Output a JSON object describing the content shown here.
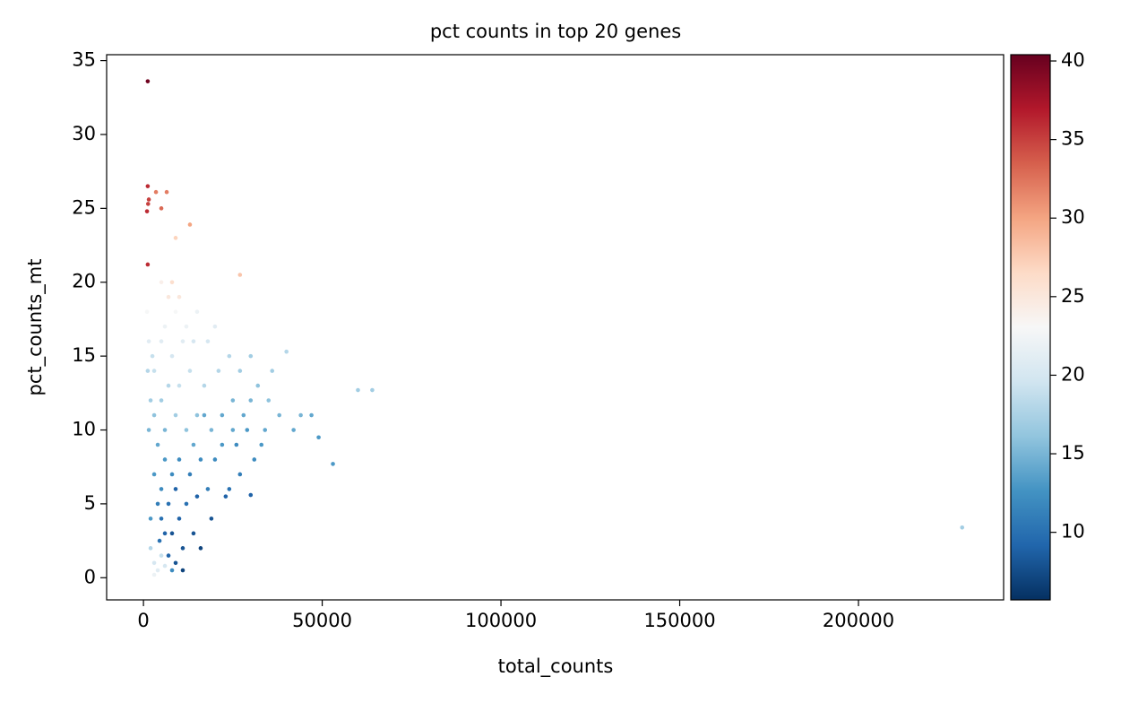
{
  "chart_data": {
    "type": "scatter",
    "title": "pct counts in top 20 genes",
    "xlabel": "total_counts",
    "ylabel": "pct_counts_mt",
    "xlim": [
      -10300,
      240600
    ],
    "xticks": [
      0,
      50000,
      100000,
      150000,
      200000
    ],
    "ylim": [
      -1.5,
      35.4
    ],
    "yticks": [
      0,
      5,
      10,
      15,
      20,
      25,
      30,
      35
    ],
    "clim": [
      5.7,
      40.4
    ],
    "cticks": [
      10,
      15,
      20,
      25,
      30,
      35,
      40
    ],
    "colormap": [
      "#053061",
      "#2166ac",
      "#4393c3",
      "#92c5de",
      "#d1e5f0",
      "#f7f7f7",
      "#fddbc7",
      "#f4a582",
      "#d6604d",
      "#b2182b",
      "#67001f"
    ],
    "x": [
      1200,
      1200,
      1500,
      1300,
      1000,
      3500,
      6500,
      5000,
      13000,
      1200,
      9000,
      27000,
      60000,
      64000,
      229000,
      53000,
      47000,
      49000,
      40000,
      30000,
      3000,
      4000,
      5000,
      2000,
      6000,
      3000,
      8000,
      7000,
      9000,
      6000,
      5000,
      4000,
      7000,
      8000,
      10000,
      12000,
      15000,
      18000,
      14000,
      11000,
      5000,
      3000,
      6000,
      8000,
      10000,
      13000,
      16000,
      20000,
      22000,
      25000,
      28000,
      30000,
      32000,
      35000,
      38000,
      42000,
      31000,
      27000,
      24000,
      19000,
      15000,
      12000,
      9000,
      6000,
      4000,
      3000,
      5000,
      7000,
      10000,
      13000,
      17000,
      21000,
      24000,
      27000,
      25000,
      8000,
      11000,
      14000,
      18000,
      5000,
      3000,
      6000,
      9000,
      12000,
      7000,
      10000,
      5000,
      8000,
      15000,
      20000,
      2500,
      2000,
      1500,
      1200,
      1500,
      1000,
      22000,
      33000,
      36000,
      44000,
      16000,
      9000,
      11000,
      4500,
      2000,
      19000,
      23000,
      30000,
      14000,
      17000,
      26000,
      29000,
      34000
    ],
    "y": [
      33.6,
      26.5,
      25.6,
      25.3,
      24.8,
      26.1,
      26.1,
      25,
      23.9,
      21.2,
      23,
      20.5,
      12.7,
      12.7,
      3.4,
      7.7,
      11,
      9.5,
      15.3,
      15,
      1.0,
      0.5,
      1.5,
      2.0,
      0.8,
      0.2,
      0.5,
      1.5,
      1.0,
      3,
      4,
      5,
      5,
      3,
      4,
      5,
      5.5,
      6,
      3,
      2,
      6,
      7,
      8,
      7,
      8,
      7,
      8,
      8,
      9,
      10,
      11,
      12,
      13,
      12,
      11,
      10,
      8,
      7,
      6,
      10,
      11,
      10,
      11,
      10,
      9,
      11,
      12,
      13,
      13,
      14,
      13,
      14,
      15,
      14,
      12,
      15,
      16,
      16,
      16,
      16,
      14,
      17,
      18,
      17,
      19,
      19,
      20,
      20,
      18,
      17,
      15,
      12,
      10,
      14,
      16,
      18,
      11,
      9,
      14,
      11,
      2,
      6,
      0.5,
      2.5,
      4,
      4,
      5.5,
      5.6,
      9,
      11,
      9,
      10,
      10
    ],
    "color_values": [
      40,
      36,
      35,
      35,
      36,
      32,
      32,
      33,
      30,
      36,
      27,
      28,
      17,
      17,
      17,
      13,
      14,
      13,
      18,
      17,
      20,
      21,
      19,
      18,
      20,
      22,
      12,
      9,
      8,
      9,
      10,
      11,
      10,
      8,
      9,
      10,
      9,
      11,
      8,
      8,
      12,
      13,
      13,
      12,
      12,
      11,
      12,
      12,
      13,
      14,
      14,
      15,
      16,
      16,
      15,
      14,
      12,
      11,
      10,
      15,
      16,
      16,
      17,
      15,
      14,
      16,
      17,
      18,
      19,
      19,
      18,
      18,
      18,
      17,
      15,
      20,
      21,
      20,
      20,
      21,
      19,
      22,
      23,
      22,
      25,
      25,
      24,
      26,
      22,
      21,
      19,
      17,
      15,
      18,
      21,
      23,
      14,
      13,
      17,
      15,
      7,
      9,
      7,
      10,
      13,
      8,
      9,
      9,
      14,
      14,
      12,
      13,
      14
    ]
  }
}
